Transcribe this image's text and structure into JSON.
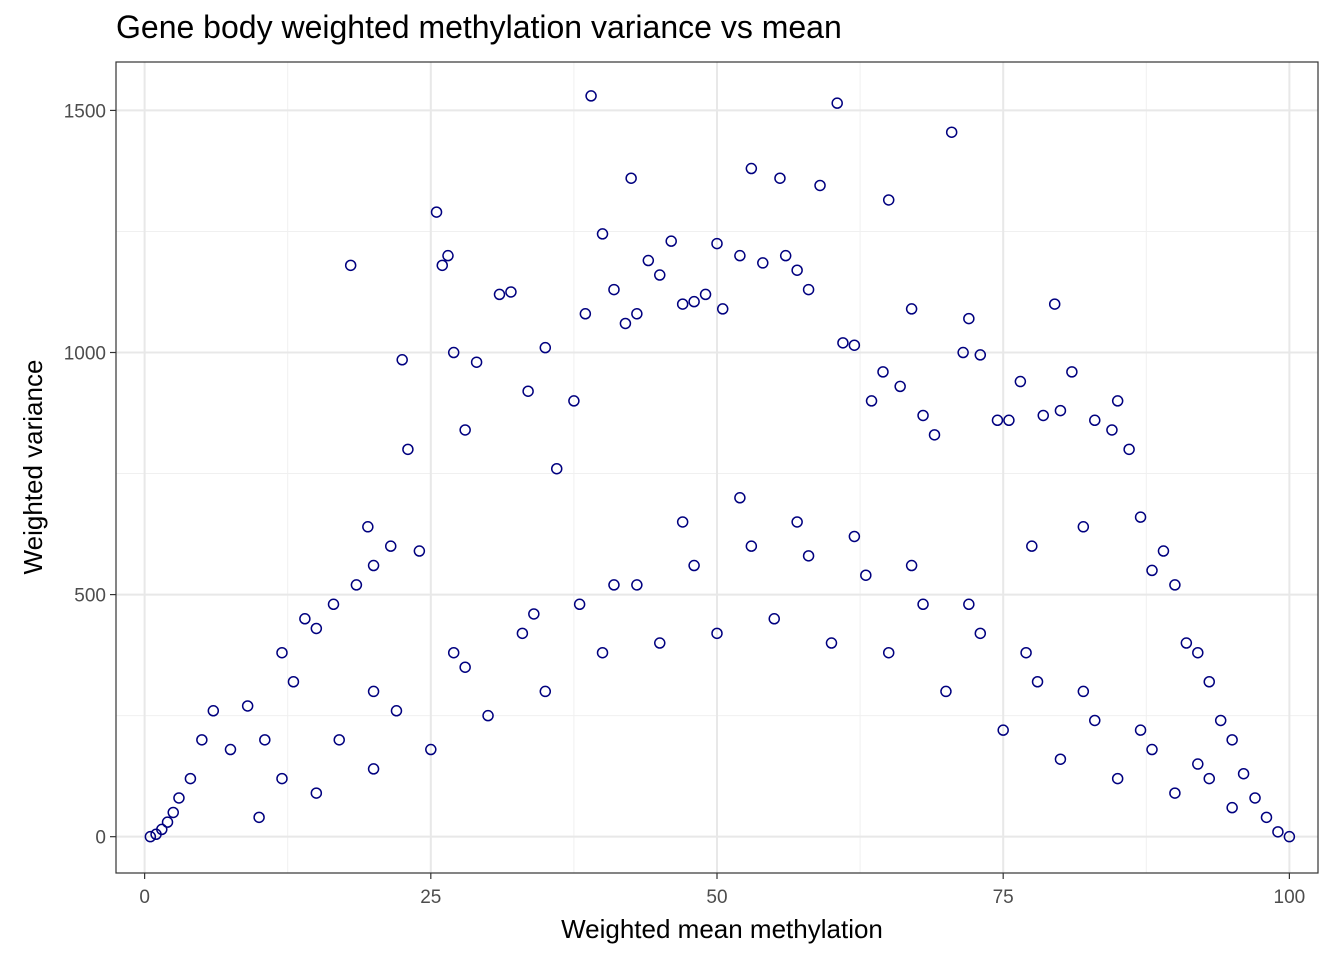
{
  "chart_data": {
    "type": "scatter",
    "title": "Gene body weighted methylation variance vs mean",
    "xlabel": "Weighted mean methylation",
    "ylabel": "Weighted variance",
    "xlim": [
      -2.5,
      102.5
    ],
    "ylim": [
      -75,
      1600
    ],
    "xticks": [
      0,
      25,
      50,
      75,
      100
    ],
    "xtick_labels": [
      "0",
      "25",
      "50",
      "75",
      "100"
    ],
    "yticks": [
      0,
      500,
      1000,
      1500
    ],
    "ytick_labels": [
      "0",
      "500",
      "1000",
      "1500"
    ],
    "grid": true,
    "legend": "none",
    "marker": "open-circle",
    "point_color": "#00007f",
    "notes_visible": "dense cloud of several thousand points, arch-shaped: variance rises from 0 at mean 0 to a maximum around mean 40-60, then falls back to 0 at mean 100",
    "x": [
      0.5,
      1.0,
      1.5,
      2.0,
      2.5,
      3.0,
      4.0,
      5.0,
      6.0,
      7.5,
      9.0,
      10.5,
      12.0,
      13.0,
      14.0,
      15.0,
      16.5,
      18.0,
      18.5,
      19.5,
      20.0,
      21.5,
      22.5,
      23.0,
      24.0,
      25.5,
      26.0,
      26.5,
      27.0,
      28.0,
      29.0,
      31.0,
      32.0,
      33.5,
      35.0,
      36.0,
      37.5,
      38.5,
      39.0,
      40.0,
      41.0,
      42.0,
      42.5,
      43.0,
      44.0,
      45.0,
      46.0,
      47.0,
      48.0,
      49.0,
      50.0,
      50.5,
      52.0,
      53.0,
      54.0,
      55.5,
      56.0,
      57.0,
      58.0,
      59.0,
      60.5,
      61.0,
      62.0,
      63.5,
      64.5,
      65.0,
      66.0,
      67.0,
      68.0,
      69.0,
      70.5,
      71.5,
      72.0,
      73.0,
      74.5,
      75.5,
      76.5,
      77.5,
      78.5,
      79.5,
      80.0,
      81.0,
      82.0,
      83.0,
      84.5,
      85.0,
      86.0,
      87.0,
      88.0,
      89.0,
      90.0,
      91.0,
      92.0,
      93.0,
      94.0,
      95.0,
      96.0,
      97.0,
      98.0,
      99.0,
      100.0,
      10,
      15,
      20,
      25,
      30,
      35,
      40,
      45,
      50,
      55,
      60,
      65,
      70,
      75,
      80,
      85,
      90,
      95,
      12,
      17,
      22,
      28,
      33,
      38,
      43,
      48,
      53,
      58,
      63,
      68,
      73,
      78,
      83,
      88,
      93,
      20,
      27,
      34,
      41,
      47,
      52,
      57,
      62,
      67,
      72,
      77,
      82,
      87,
      92
    ],
    "y": [
      0,
      5,
      15,
      30,
      50,
      80,
      120,
      200,
      260,
      180,
      270,
      200,
      380,
      320,
      450,
      430,
      480,
      1180,
      520,
      640,
      560,
      600,
      985,
      800,
      590,
      1290,
      1180,
      1200,
      1000,
      840,
      980,
      1120,
      1125,
      920,
      1010,
      760,
      900,
      1080,
      1530,
      1245,
      1130,
      1060,
      1360,
      1080,
      1190,
      1160,
      1230,
      1100,
      1105,
      1120,
      1225,
      1090,
      1200,
      1380,
      1185,
      1360,
      1200,
      1170,
      1130,
      1345,
      1515,
      1020,
      1015,
      900,
      960,
      1315,
      930,
      1090,
      870,
      830,
      1455,
      1000,
      1070,
      995,
      860,
      860,
      940,
      600,
      870,
      1100,
      880,
      960,
      640,
      860,
      840,
      900,
      800,
      660,
      550,
      590,
      520,
      400,
      380,
      320,
      240,
      200,
      130,
      80,
      40,
      10,
      0,
      40,
      90,
      140,
      180,
      250,
      300,
      380,
      400,
      420,
      450,
      400,
      380,
      300,
      220,
      160,
      120,
      90,
      60,
      120,
      200,
      260,
      350,
      420,
      480,
      520,
      560,
      600,
      580,
      540,
      480,
      420,
      320,
      240,
      180,
      120,
      300,
      380,
      460,
      520,
      650,
      700,
      650,
      620,
      560,
      480,
      380,
      300,
      220,
      150
    ]
  }
}
